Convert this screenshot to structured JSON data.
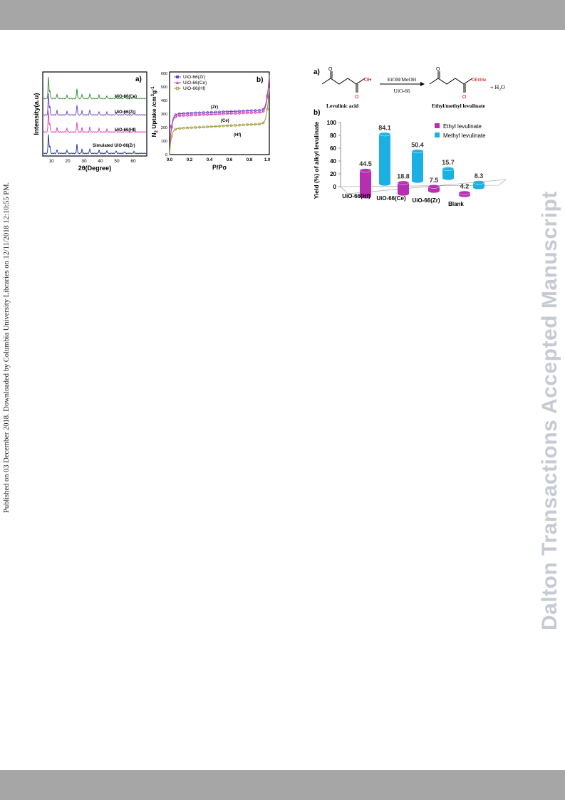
{
  "side_note": "Published on 03 December 2018. Downloaded by Columbia University Libraries on 12/11/2018 12:10:55 PM.",
  "watermark": "Dalton Transactions Accepted Manuscript",
  "colors": {
    "band": "#a6a6a6",
    "watermark": "#c6cad2",
    "ethyl": "#b52fb0",
    "methyl": "#1ab0e3",
    "zr": "#6b3fd0",
    "ce": "#e23ab8",
    "hf": "#9c9c38",
    "sim": "#1f2f9a",
    "ce_xrd": "#2f8a2f"
  },
  "xrd": {
    "panel_label": "a)",
    "ylabel": "Intensity(a.u)",
    "xlabel": "2θ(Degree)",
    "xticks": [
      "10",
      "20",
      "30",
      "40",
      "50",
      "60"
    ],
    "traces": [
      "UiO-66(Ce)",
      "UiO-66(Zr)",
      "UiO-66(Hf)",
      "Simulated UiO-66(Zr)"
    ]
  },
  "iso": {
    "panel_label": "b)",
    "ylabel_main": "N",
    "ylabel_sub": "2",
    "ylabel_rest": " Uptake /cm",
    "ylabel_sup1": "3",
    "ylabel_rest2": "g",
    "ylabel_sup2": "-1",
    "xlabel": "P/Po",
    "xticks": [
      "0.0",
      "0.2",
      "0.4",
      "0.6",
      "0.8",
      "1.0"
    ],
    "yticks": [
      "0",
      "100",
      "200",
      "300",
      "400",
      "500",
      "600"
    ],
    "legend": [
      "UiO-66(Zr)",
      "UiO-66(Ce)",
      "UiO-66(Hf)"
    ],
    "annotations": [
      "(Zr)",
      "(Ce)",
      "(Hf)"
    ]
  },
  "scheme": {
    "panel_label": "a)",
    "oh": "OH",
    "oet": "OEt/Me",
    "o1": "O",
    "o2": "O",
    "o3": "O",
    "o4": "O",
    "reagent": "EtOH/MeOH",
    "catalyst": "UiO-66",
    "plus_water": "+ H",
    "water_sub": "2",
    "water_o": "O",
    "reactant": "Levulinic acid",
    "product": "Ethyl/methyl levulinate"
  },
  "chart_data": {
    "type": "bar",
    "panel_label": "b)",
    "ylabel": "Yield (%) of alkyl levulinate",
    "ylim": [
      0,
      100
    ],
    "yticks": [
      "0",
      "20",
      "40",
      "60",
      "80",
      "100"
    ],
    "categories": [
      "UiO-66(Hf)",
      "UiO-66(Ce)",
      "UiO-66(Zr)",
      "Blank"
    ],
    "series": [
      {
        "name": "Ethyl levulinate",
        "values": [
          44.5,
          18.8,
          7.5,
          4.2
        ]
      },
      {
        "name": "Methyl levulinate",
        "values": [
          84.1,
          50.4,
          15.7,
          8.3
        ]
      }
    ],
    "data_labels": {
      "ethyl": [
        "44.5",
        "18.8",
        "7.5",
        "4.2"
      ],
      "methyl": [
        "84.1",
        "50.4",
        "15.7",
        "8.3"
      ]
    },
    "legend_position": "top-right"
  }
}
